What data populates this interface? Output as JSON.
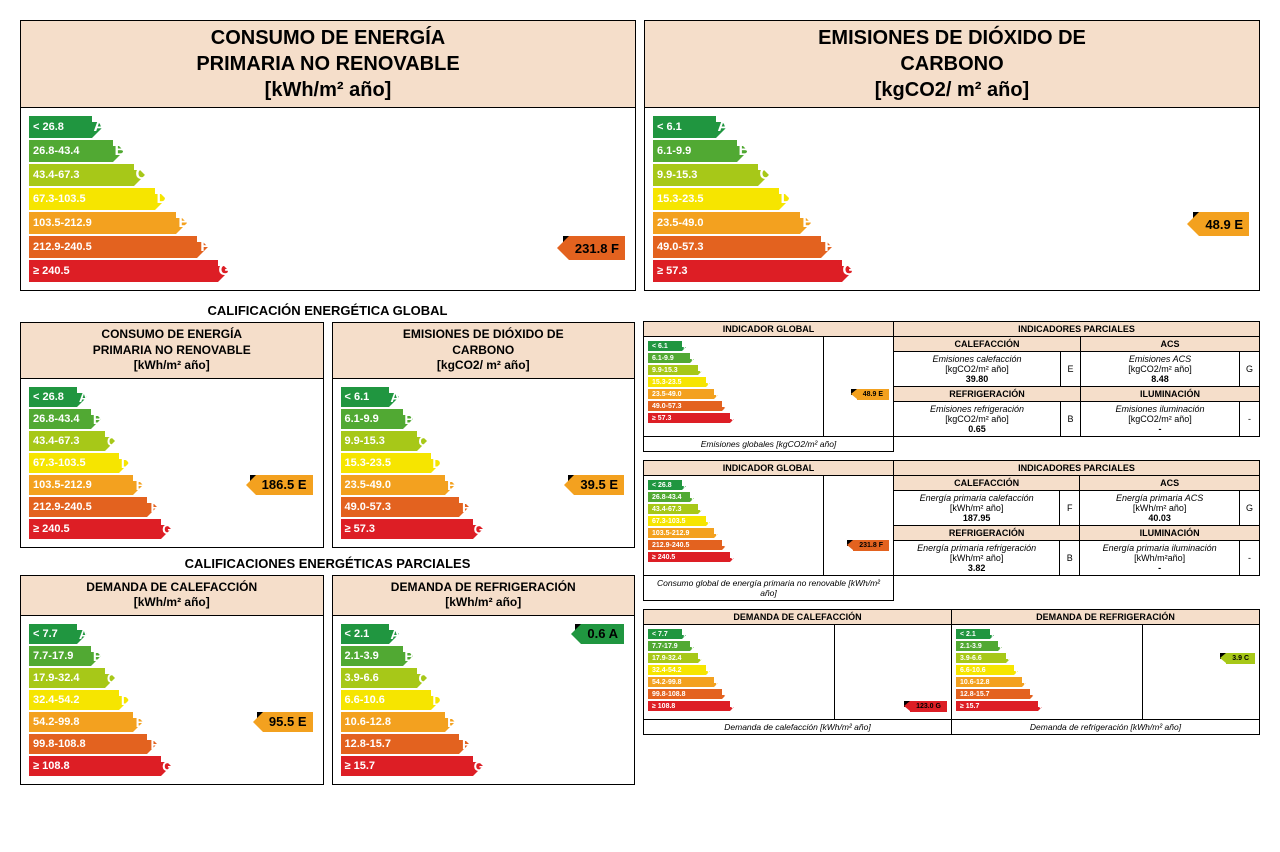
{
  "colors": {
    "A": "#209640",
    "B": "#51a933",
    "C": "#a7c818",
    "D": "#f6e500",
    "E": "#f3a11f",
    "F": "#e3621f",
    "G": "#dd1e25",
    "header_bg": "#f5deca"
  },
  "arrow_widths": {
    "large": [
      63,
      84,
      105,
      126,
      147,
      168,
      189
    ],
    "medium": [
      48,
      62,
      76,
      90,
      104,
      118,
      132
    ],
    "small": [
      40,
      50,
      60,
      70,
      80,
      90,
      100
    ],
    "tiny": [
      34,
      42,
      50,
      58,
      66,
      74,
      82
    ]
  },
  "top_row": {
    "left": {
      "title": "CONSUMO DE ENERGÍA\nPRIMARIA NO RENOVABLE\n[kWh/m² año]",
      "ranges": [
        "< 26.8",
        "26.8-43.4",
        "43.4-67.3",
        "67.3-103.5",
        "103.5-212.9",
        "212.9-240.5",
        "≥ 240.5"
      ],
      "pointer_value": "231.8 F",
      "pointer_letter": "F"
    },
    "right": {
      "title": "EMISIONES DE DIÓXIDO DE\nCARBONO\n[kgCO2/ m² año]",
      "ranges": [
        "< 6.1",
        "6.1-9.9",
        "9.9-15.3",
        "15.3-23.5",
        "23.5-49.0",
        "49.0-57.3",
        "≥ 57.3"
      ],
      "pointer_value": "48.9 E",
      "pointer_letter": "E"
    }
  },
  "global_section": {
    "title": "CALIFICACIÓN ENERGÉTICA GLOBAL",
    "left": {
      "title": "CONSUMO DE ENERGÍA\nPRIMARIA NO RENOVABLE\n[kWh/m² año]",
      "ranges": [
        "< 26.8",
        "26.8-43.4",
        "43.4-67.3",
        "67.3-103.5",
        "103.5-212.9",
        "212.9-240.5",
        "≥ 240.5"
      ],
      "pointer_value": "186.5 E",
      "pointer_letter": "E"
    },
    "right": {
      "title": "EMISIONES DE DIÓXIDO DE\nCARBONO\n[kgCO2/ m² año]",
      "ranges": [
        "< 6.1",
        "6.1-9.9",
        "9.9-15.3",
        "15.3-23.5",
        "23.5-49.0",
        "49.0-57.3",
        "≥ 57.3"
      ],
      "pointer_value": "39.5 E",
      "pointer_letter": "E"
    }
  },
  "partial_section": {
    "title": "CALIFICACIONES ENERGÉTICAS PARCIALES",
    "left": {
      "title": "DEMANDA DE CALEFACCIÓN\n[kWh/m² año]",
      "ranges": [
        "< 7.7",
        "7.7-17.9",
        "17.9-32.4",
        "32.4-54.2",
        "54.2-99.8",
        "99.8-108.8",
        "≥ 108.8"
      ],
      "pointer_value": "95.5 E",
      "pointer_letter": "E"
    },
    "right": {
      "title": "DEMANDA DE REFRIGERACIÓN\n[kWh/m² año]",
      "ranges": [
        "< 2.1",
        "2.1-3.9",
        "3.9-6.6",
        "6.6-10.6",
        "10.6-12.8",
        "12.8-15.7",
        "≥ 15.7"
      ],
      "pointer_value": "0.6 A",
      "pointer_letter": "A"
    }
  },
  "table1": {
    "header_global": "INDICADOR GLOBAL",
    "header_partial": "INDICADORES PARCIALES",
    "mini_ranges": [
      "< 6.1",
      "6.1-9.9",
      "9.9-15.3",
      "15.3-23.5",
      "23.5-49.0",
      "49.0-57.3",
      "≥ 57.3"
    ],
    "pointer_value": "48.9 E",
    "pointer_letter": "E",
    "caption": "Emisiones globales [kgCO2/m² año]",
    "cells": {
      "h1": "CALEFACCIÓN",
      "h2": "ACS",
      "l1": "Emisiones calefacción",
      "u1": "[kgCO2/m² año]",
      "g1": "E",
      "v1": "39.80",
      "l2": "Emisiones ACS",
      "u2": "[kgCO2/m² año]",
      "g2": "G",
      "v2": "8.48",
      "h3": "REFRIGERACIÓN",
      "h4": "ILUMINACIÓN",
      "l3": "Emisiones refrigeración",
      "u3": "[kgCO2/m² año]",
      "g3": "B",
      "v3": "0.65",
      "l4": "Emisiones iluminación",
      "u4": "[kgCO2/m² año]",
      "g4": "-",
      "v4": "-"
    }
  },
  "table2": {
    "header_global": "INDICADOR GLOBAL",
    "header_partial": "INDICADORES PARCIALES",
    "mini_ranges": [
      "< 26.8",
      "26.8-43.4",
      "43.4-67.3",
      "67.3-103.5",
      "103.5-212.9",
      "212.9-240.5",
      "≥ 240.5"
    ],
    "pointer_value": "231.8 F",
    "pointer_letter": "F",
    "caption": "Consumo global de energía primaria no renovable [kWh/m² año]",
    "cells": {
      "h1": "CALEFACCIÓN",
      "h2": "ACS",
      "l1": "Energía primaria calefacción",
      "u1": "[kWh/m² año]",
      "g1": "F",
      "v1": "187.95",
      "l2": "Energía primaria ACS",
      "u2": "[kWh/m² año]",
      "g2": "G",
      "v2": "40.03",
      "h3": "REFRIGERACIÓN",
      "h4": "ILUMINACIÓN",
      "l3": "Energía primaria refrigeración",
      "u3": "[kWh/m² año]",
      "g3": "B",
      "v3": "3.82",
      "l4": "Energía primaria iluminación",
      "u4": "[kWh/m²año]",
      "g4": "-",
      "v4": "-"
    }
  },
  "table3": {
    "left_header": "DEMANDA DE CALEFACCIÓN",
    "right_header": "DEMANDA DE REFRIGERACIÓN",
    "left_ranges": [
      "< 7.7",
      "7.7-17.9",
      "17.9-32.4",
      "32.4-54.2",
      "54.2-99.8",
      "99.8-108.8",
      "≥ 108.8"
    ],
    "right_ranges": [
      "< 2.1",
      "2.1-3.9",
      "3.9-6.6",
      "6.6-10.6",
      "10.6-12.8",
      "12.8-15.7",
      "≥ 15.7"
    ],
    "left_pointer_value": "123.0 G",
    "left_pointer_letter": "G",
    "right_pointer_value": "3.9 C",
    "right_pointer_letter": "C",
    "left_caption": "Demanda de calefacción [kWh/m² año]",
    "right_caption": "Demanda de refrigeración [kWh/m² año]"
  }
}
